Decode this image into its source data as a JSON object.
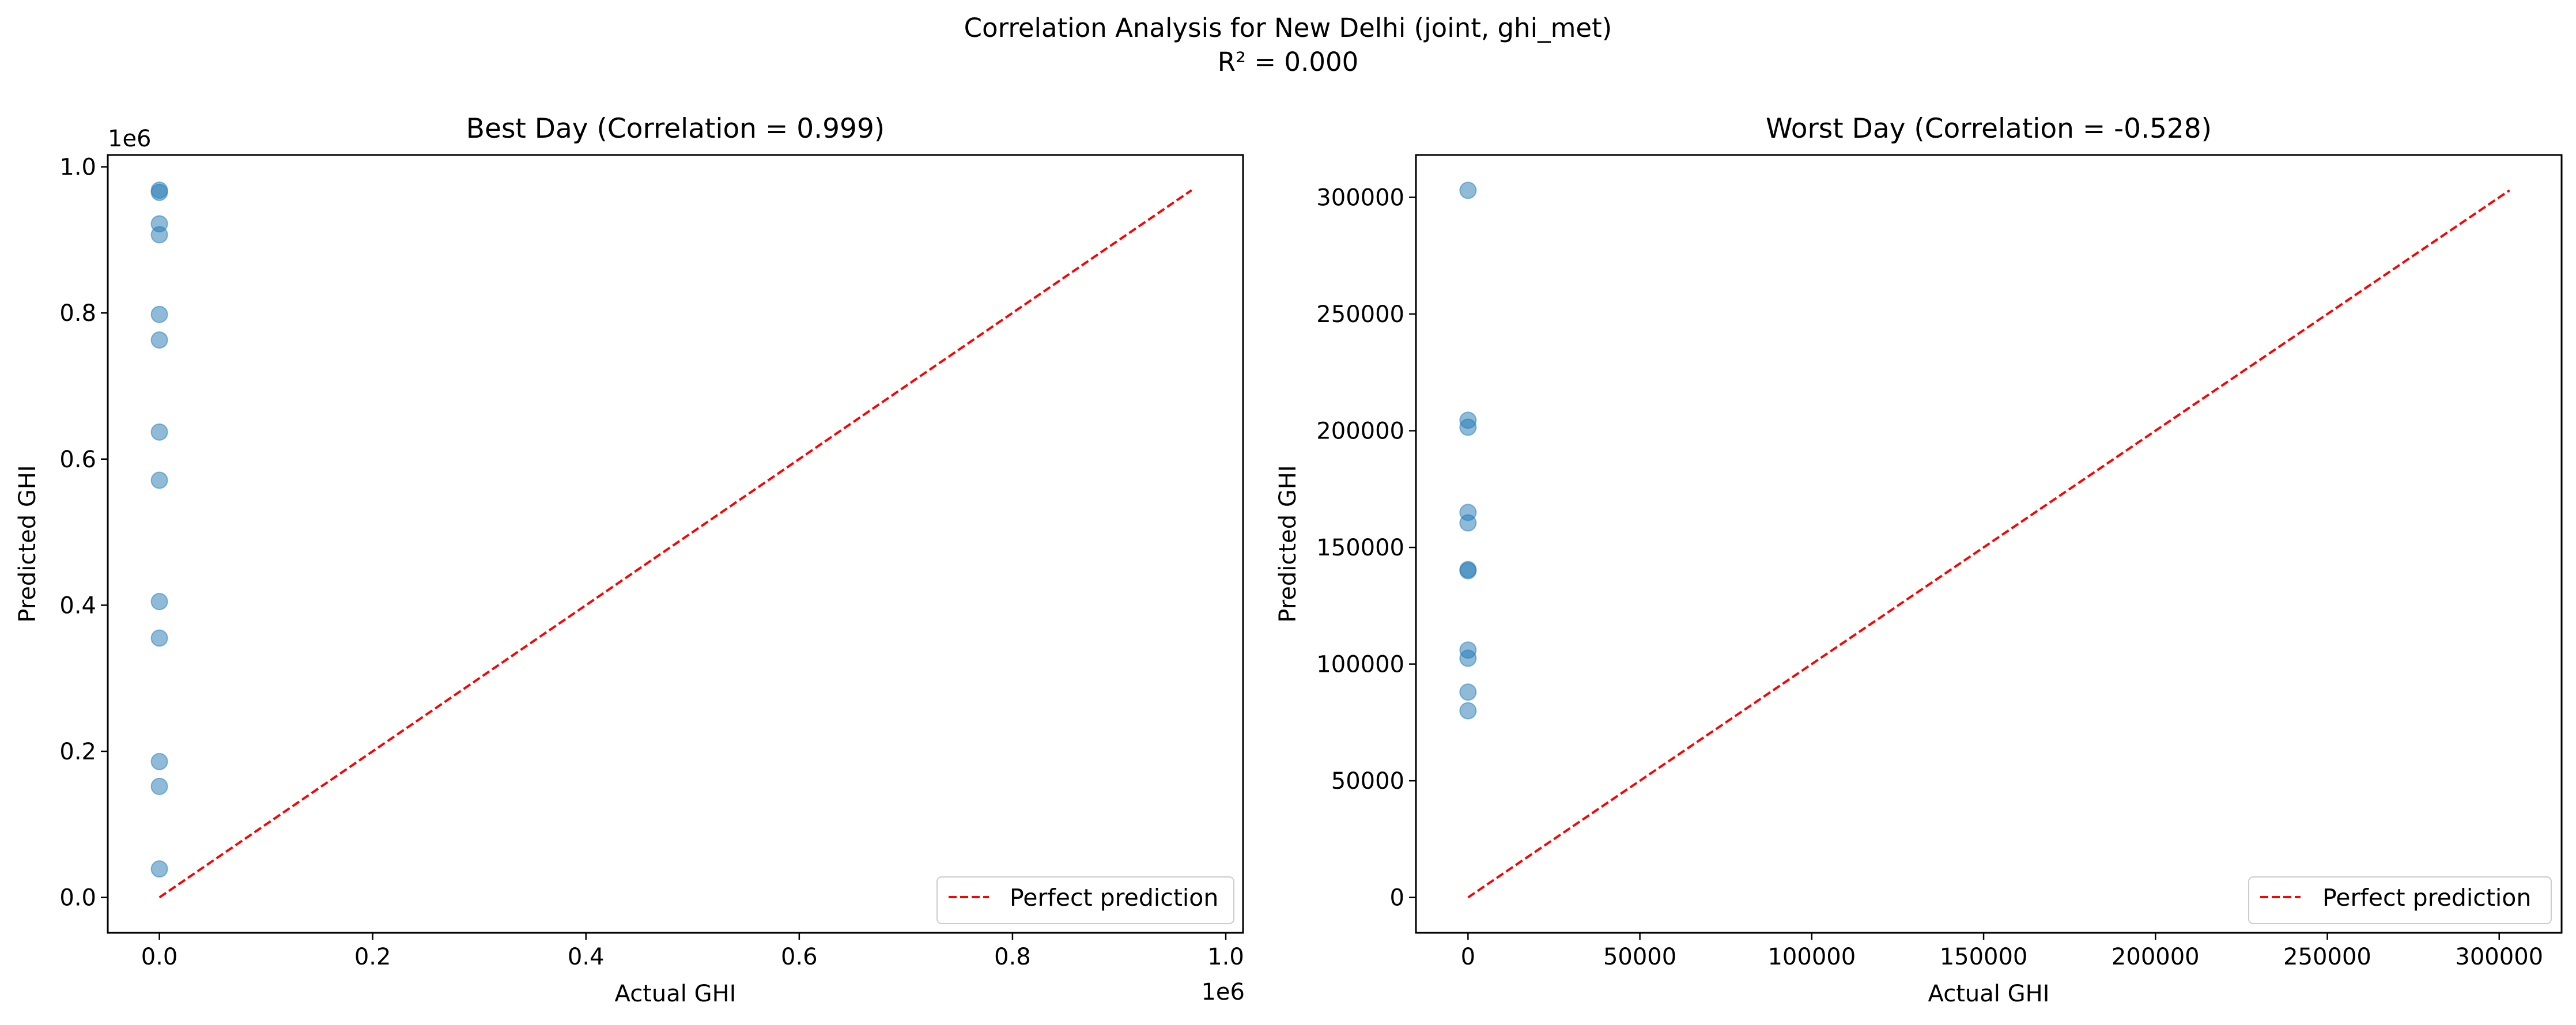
{
  "figure": {
    "suptitle": "Correlation Analysis for New Delhi (joint, ghi_met)",
    "subtitle": "R² = 0.000"
  },
  "chart_data": [
    {
      "type": "scatter",
      "title": "Best Day (Correlation = 0.999)",
      "xlabel": "Actual GHI",
      "ylabel": "Predicted GHI",
      "offset_text_x": "1e6",
      "offset_text_y": "1e6",
      "xlim": [
        -0.0484,
        1.0162
      ],
      "ylim": [
        -0.0484,
        1.0162
      ],
      "xticks": [
        0,
        0.2,
        0.4,
        0.6,
        0.8,
        1.0
      ],
      "xtick_labels": [
        "0.0",
        "0.2",
        "0.4",
        "0.6",
        "0.8",
        "1.0"
      ],
      "yticks": [
        0,
        0.2,
        0.4,
        0.6,
        0.8,
        1.0
      ],
      "ytick_labels": [
        "0.0",
        "0.2",
        "0.4",
        "0.6",
        "0.8",
        "1.0"
      ],
      "grid": false,
      "legend_position": "lower-right",
      "series": [
        {
          "kind": "scatter",
          "color": "#1f77b4",
          "points": [
            [
              0,
              0.968
            ],
            [
              0,
              0.965
            ],
            [
              0,
              0.922
            ],
            [
              0,
              0.907
            ],
            [
              0,
              0.798
            ],
            [
              0,
              0.763
            ],
            [
              0,
              0.637
            ],
            [
              0,
              0.571
            ],
            [
              0,
              0.405
            ],
            [
              0,
              0.355
            ],
            [
              0,
              0.186
            ],
            [
              0,
              0.152
            ],
            [
              0,
              0.039
            ]
          ]
        },
        {
          "kind": "line",
          "name": "Perfect prediction",
          "color": "#ff0000",
          "dashed": true,
          "points": [
            [
              0,
              0
            ],
            [
              0.968,
              0.968
            ]
          ]
        }
      ]
    },
    {
      "type": "scatter",
      "title": "Worst Day (Correlation = -0.528)",
      "xlabel": "Actual GHI",
      "ylabel": "Predicted GHI",
      "xlim": [
        -15150,
        318150
      ],
      "ylim": [
        -15150,
        318150
      ],
      "xticks": [
        0,
        50000,
        100000,
        150000,
        200000,
        250000,
        300000
      ],
      "xtick_labels": [
        "0",
        "50000",
        "100000",
        "150000",
        "200000",
        "250000",
        "300000"
      ],
      "yticks": [
        0,
        50000,
        100000,
        150000,
        200000,
        250000,
        300000
      ],
      "ytick_labels": [
        "0",
        "50000",
        "100000",
        "150000",
        "200000",
        "250000",
        "300000"
      ],
      "grid": false,
      "legend_position": "lower-right",
      "series": [
        {
          "kind": "scatter",
          "color": "#1f77b4",
          "points": [
            [
              0,
              303000
            ],
            [
              0,
              204500
            ],
            [
              0,
              201500
            ],
            [
              0,
              165000
            ],
            [
              0,
              160500
            ],
            [
              0,
              140500
            ],
            [
              0,
              140000
            ],
            [
              0,
              106000
            ],
            [
              0,
              102500
            ],
            [
              0,
              88000
            ],
            [
              0,
              80000
            ]
          ]
        },
        {
          "kind": "line",
          "name": "Perfect prediction",
          "color": "#ff0000",
          "dashed": true,
          "points": [
            [
              0,
              0
            ],
            [
              303000,
              303000
            ]
          ]
        }
      ]
    }
  ]
}
